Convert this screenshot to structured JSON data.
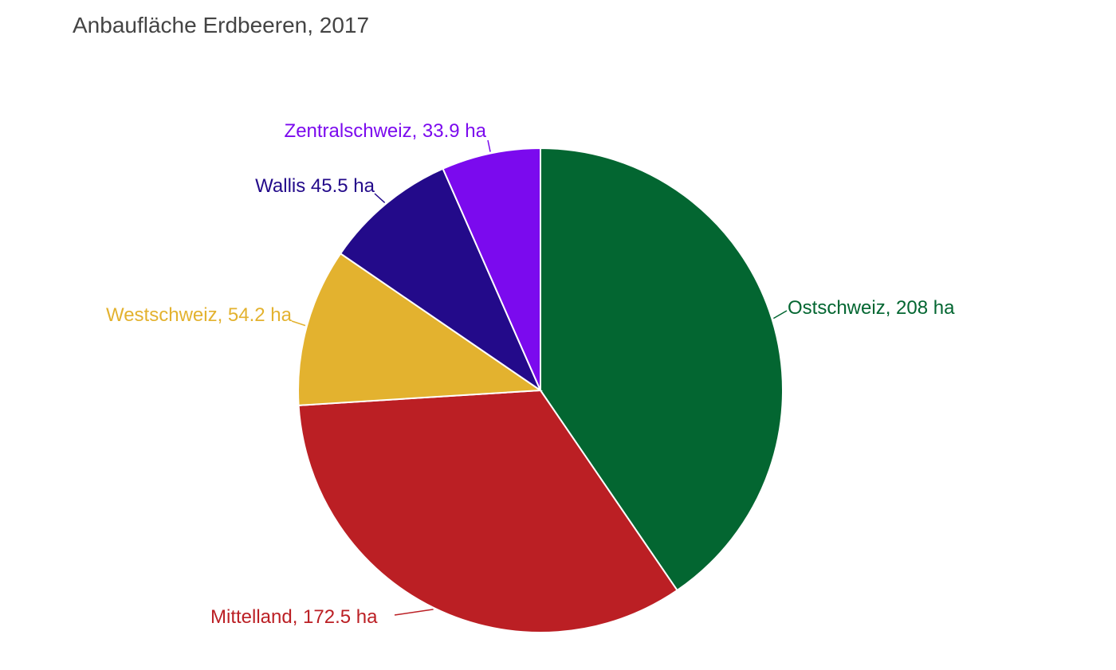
{
  "chart_data": {
    "type": "pie",
    "title": "Anbaufläche Erdbeeren, 2017",
    "unit": "ha",
    "slices": [
      {
        "name": "Ostschweiz",
        "value": 208,
        "label": "Ostschweiz, 208 ha",
        "color": "#036631"
      },
      {
        "name": "Mittelland",
        "value": 172.5,
        "label": "Mittelland, 172.5 ha",
        "color": "#BB1F24"
      },
      {
        "name": "Westschweiz",
        "value": 54.2,
        "label": "Westschweiz, 54.2 ha",
        "color": "#E3B22F"
      },
      {
        "name": "Wallis",
        "value": 45.5,
        "label": "Wallis 45.5 ha",
        "color": "#230A8A"
      },
      {
        "name": "Zentralschweiz",
        "value": 33.9,
        "label": "Zentralschweiz, 33.9 ha",
        "color": "#7B0AEE"
      }
    ],
    "start_angle": "12 o'clock",
    "direction": "clockwise",
    "legend": "none (direct labels)"
  }
}
